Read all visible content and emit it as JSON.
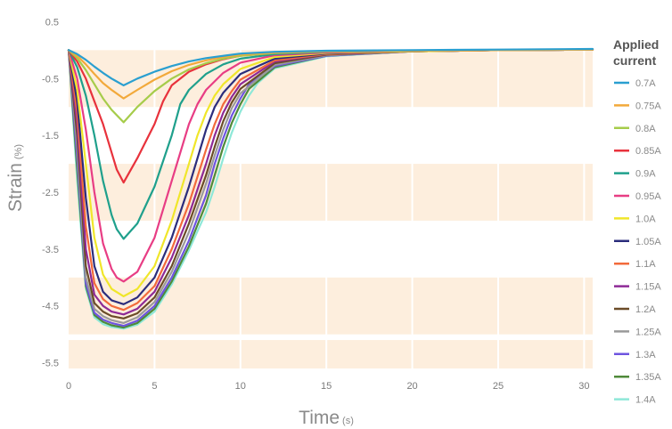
{
  "chart_data": {
    "type": "line",
    "xlabel": "Time",
    "xunit": "(s)",
    "ylabel": "Strain",
    "yunit": "(%)",
    "xlim": [
      0,
      30.5
    ],
    "ylim": [
      -5.6,
      0.6
    ],
    "x_ticks": [
      0,
      5,
      10,
      15,
      20,
      25,
      30
    ],
    "y_ticks": [
      0.5,
      -0.5,
      -1.5,
      -2.5,
      -3.5,
      -4.5,
      -5.5
    ],
    "y_tick_labels": [
      "0.5",
      "-0.5",
      "-1.5",
      "-2.5",
      "-3.5",
      "-4.5",
      "-5.5"
    ],
    "legend_title": "Applied current",
    "legend_position": "right",
    "series": [
      {
        "name": "0.7A",
        "color": "#2a9fd0",
        "x": [
          0,
          0.5,
          1,
          1.5,
          2,
          2.5,
          3.2,
          4,
          5,
          6,
          7,
          8,
          10,
          12,
          15,
          20,
          25,
          30.5
        ],
        "y": [
          0,
          -0.07,
          -0.17,
          -0.29,
          -0.4,
          -0.5,
          -0.62,
          -0.5,
          -0.38,
          -0.28,
          -0.2,
          -0.14,
          -0.06,
          -0.03,
          -0.01,
          0,
          0.01,
          0.02
        ]
      },
      {
        "name": "0.75A",
        "color": "#f2a93b",
        "x": [
          0,
          0.5,
          1,
          1.5,
          2,
          2.5,
          3.2,
          4,
          5,
          6,
          7,
          8,
          9,
          10,
          12,
          15,
          20,
          25,
          30.5
        ],
        "y": [
          0,
          -0.1,
          -0.25,
          -0.42,
          -0.58,
          -0.7,
          -0.85,
          -0.7,
          -0.52,
          -0.37,
          -0.26,
          -0.18,
          -0.12,
          -0.08,
          -0.04,
          -0.02,
          -0.01,
          0,
          0.01
        ]
      },
      {
        "name": "0.8A",
        "color": "#a6cc4a",
        "x": [
          0,
          0.5,
          1,
          1.5,
          2,
          2.5,
          3.2,
          4,
          5,
          6,
          7,
          8,
          9,
          10,
          12,
          15,
          20,
          25,
          30.5
        ],
        "y": [
          0,
          -0.14,
          -0.35,
          -0.6,
          -0.85,
          -1.05,
          -1.27,
          -1.0,
          -0.72,
          -0.5,
          -0.34,
          -0.23,
          -0.15,
          -0.1,
          -0.05,
          -0.02,
          -0.01,
          0,
          0.01
        ]
      },
      {
        "name": "0.85A",
        "color": "#e8323c",
        "x": [
          0,
          0.5,
          1,
          1.5,
          2,
          2.5,
          2.8,
          3.2,
          4,
          5,
          5.5,
          6,
          7,
          8,
          9,
          10,
          12,
          15,
          20,
          25,
          30.5
        ],
        "y": [
          0,
          -0.2,
          -0.5,
          -0.9,
          -1.3,
          -1.8,
          -2.1,
          -2.33,
          -1.9,
          -1.3,
          -0.9,
          -0.62,
          -0.38,
          -0.25,
          -0.16,
          -0.1,
          -0.05,
          -0.02,
          -0.01,
          0,
          0.01
        ]
      },
      {
        "name": "0.9A",
        "color": "#1fa08c",
        "x": [
          0,
          0.5,
          1,
          1.5,
          2,
          2.5,
          2.8,
          3.2,
          4,
          5,
          6,
          6.5,
          7,
          8,
          9,
          10,
          12,
          15,
          20,
          25,
          30.5
        ],
        "y": [
          0,
          -0.3,
          -0.8,
          -1.5,
          -2.3,
          -2.9,
          -3.15,
          -3.32,
          -3.05,
          -2.4,
          -1.5,
          -0.95,
          -0.7,
          -0.42,
          -0.25,
          -0.15,
          -0.07,
          -0.03,
          -0.01,
          0,
          0.01
        ]
      },
      {
        "name": "0.95A",
        "color": "#e83d84",
        "x": [
          0,
          0.5,
          1,
          1.5,
          2,
          2.5,
          2.8,
          3.2,
          4,
          5,
          6,
          7,
          7.5,
          8,
          9,
          10,
          12,
          15,
          20,
          25,
          30.5
        ],
        "y": [
          0,
          -0.5,
          -1.4,
          -2.5,
          -3.4,
          -3.85,
          -4.0,
          -4.07,
          -3.9,
          -3.3,
          -2.3,
          -1.3,
          -0.95,
          -0.7,
          -0.4,
          -0.22,
          -0.09,
          -0.04,
          -0.01,
          0,
          0.01
        ]
      },
      {
        "name": "1.0A",
        "color": "#f0e62a",
        "x": [
          0,
          0.5,
          1,
          1.5,
          2,
          2.5,
          3.2,
          4,
          5,
          6,
          7,
          7.5,
          8,
          8.5,
          9,
          10,
          12,
          15,
          20,
          25,
          30.5
        ],
        "y": [
          0,
          -0.7,
          -2.0,
          -3.3,
          -3.95,
          -4.2,
          -4.33,
          -4.2,
          -3.8,
          -3.0,
          -2.0,
          -1.5,
          -1.1,
          -0.8,
          -0.6,
          -0.33,
          -0.12,
          -0.05,
          -0.02,
          0,
          0.01
        ]
      },
      {
        "name": "1.05A",
        "color": "#2b2d7c",
        "x": [
          0,
          0.5,
          1,
          1.5,
          2,
          2.5,
          3.2,
          4,
          5,
          6,
          7,
          7.5,
          8,
          8.5,
          9,
          10,
          12,
          15,
          20,
          25,
          30.5
        ],
        "y": [
          0,
          -0.9,
          -2.6,
          -3.8,
          -4.25,
          -4.4,
          -4.47,
          -4.35,
          -4.0,
          -3.3,
          -2.4,
          -1.9,
          -1.4,
          -1.0,
          -0.75,
          -0.42,
          -0.15,
          -0.06,
          -0.02,
          0,
          0.01
        ]
      },
      {
        "name": "1.1A",
        "color": "#f26a3b",
        "x": [
          0,
          0.5,
          1,
          1.5,
          2,
          2.5,
          3.2,
          4,
          5,
          6,
          7,
          8,
          8.5,
          9,
          9.5,
          10,
          12,
          15,
          20,
          25,
          30.5
        ],
        "y": [
          0,
          -1.1,
          -3.1,
          -4.1,
          -4.38,
          -4.5,
          -4.57,
          -4.45,
          -4.15,
          -3.5,
          -2.7,
          -1.75,
          -1.3,
          -0.95,
          -0.72,
          -0.52,
          -0.18,
          -0.07,
          -0.02,
          0,
          0.01
        ]
      },
      {
        "name": "1.15A",
        "color": "#8e2a96",
        "x": [
          0,
          0.5,
          1,
          1.5,
          2,
          2.5,
          3.2,
          4,
          5,
          6,
          7,
          8,
          8.5,
          9,
          9.5,
          10,
          12,
          15,
          20,
          25,
          30.5
        ],
        "y": [
          0,
          -1.3,
          -3.5,
          -4.3,
          -4.5,
          -4.6,
          -4.65,
          -4.55,
          -4.25,
          -3.65,
          -2.9,
          -2.0,
          -1.5,
          -1.1,
          -0.82,
          -0.6,
          -0.2,
          -0.07,
          -0.02,
          0,
          0.01
        ]
      },
      {
        "name": "1.2A",
        "color": "#6b4c28",
        "x": [
          0,
          0.5,
          1,
          1.5,
          2,
          2.5,
          3.2,
          4,
          5,
          6,
          7,
          8,
          8.5,
          9,
          9.5,
          10,
          12,
          15,
          20,
          25,
          30.5
        ],
        "y": [
          0,
          -1.5,
          -3.8,
          -4.45,
          -4.6,
          -4.68,
          -4.72,
          -4.63,
          -4.35,
          -3.8,
          -3.05,
          -2.2,
          -1.7,
          -1.25,
          -0.92,
          -0.68,
          -0.23,
          -0.08,
          -0.02,
          0,
          0.01
        ]
      },
      {
        "name": "1.25A",
        "color": "#9a9a9a",
        "x": [
          0,
          0.5,
          1,
          1.5,
          2,
          2.5,
          3.2,
          4,
          5,
          6,
          7,
          8,
          8.5,
          9,
          9.5,
          10,
          12,
          15,
          20,
          25,
          30.5
        ],
        "y": [
          0,
          -1.7,
          -4.0,
          -4.55,
          -4.68,
          -4.75,
          -4.8,
          -4.7,
          -4.43,
          -3.9,
          -3.2,
          -2.35,
          -1.85,
          -1.4,
          -1.02,
          -0.76,
          -0.26,
          -0.09,
          -0.02,
          0,
          0.01
        ]
      },
      {
        "name": "1.3A",
        "color": "#6e54e0",
        "x": [
          0,
          0.5,
          1,
          1.5,
          2,
          2.5,
          3.2,
          4,
          5,
          6,
          7,
          8,
          8.5,
          9,
          9.5,
          10,
          10.5,
          12,
          15,
          20,
          25,
          30.5
        ],
        "y": [
          0,
          -1.9,
          -4.1,
          -4.62,
          -4.74,
          -4.8,
          -4.85,
          -4.76,
          -4.5,
          -4.0,
          -3.35,
          -2.55,
          -2.0,
          -1.55,
          -1.15,
          -0.85,
          -0.6,
          -0.28,
          -0.1,
          -0.02,
          0,
          0.01
        ]
      },
      {
        "name": "1.35A",
        "color": "#4f8a3a",
        "x": [
          0,
          0.5,
          1,
          1.5,
          2,
          2.5,
          3.2,
          4,
          5,
          6,
          7,
          8,
          8.5,
          9,
          9.5,
          10,
          10.5,
          12,
          15,
          20,
          25,
          30.5
        ],
        "y": [
          0,
          -2.1,
          -4.15,
          -4.66,
          -4.78,
          -4.84,
          -4.88,
          -4.8,
          -4.55,
          -4.07,
          -3.45,
          -2.7,
          -2.2,
          -1.7,
          -1.28,
          -0.95,
          -0.68,
          -0.3,
          -0.1,
          -0.02,
          0,
          0.01
        ]
      },
      {
        "name": "1.4A",
        "color": "#8ee8d8",
        "x": [
          0,
          0.5,
          1,
          1.5,
          2,
          2.5,
          3.2,
          4,
          5,
          6,
          7,
          8,
          8.5,
          9,
          9.5,
          10,
          10.5,
          11,
          12,
          15,
          20,
          25,
          30.5
        ],
        "y": [
          0,
          -2.3,
          -4.2,
          -4.7,
          -4.82,
          -4.87,
          -4.9,
          -4.83,
          -4.6,
          -4.12,
          -3.52,
          -2.85,
          -2.4,
          -1.9,
          -1.45,
          -1.08,
          -0.8,
          -0.58,
          -0.32,
          -0.11,
          -0.02,
          0,
          0.01
        ]
      }
    ]
  }
}
